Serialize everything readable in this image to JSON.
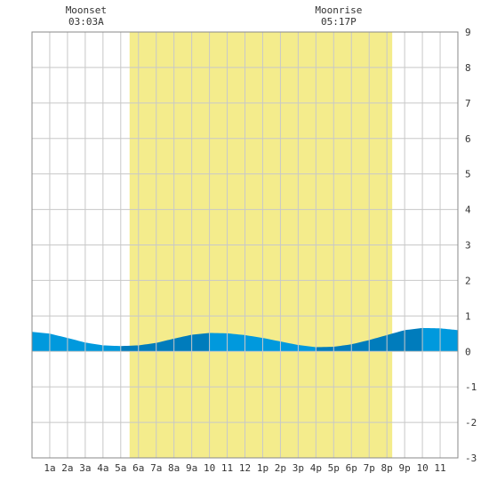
{
  "chart_data": {
    "type": "area",
    "title": "",
    "xlabel": "",
    "ylabel": "",
    "x_range": [
      0,
      24
    ],
    "ylim": [
      -3,
      9
    ],
    "y_ticks": [
      "9",
      "8",
      "7",
      "6",
      "5",
      "4",
      "3",
      "2",
      "1",
      "0",
      "-1",
      "-2",
      "-3"
    ],
    "x_ticks": [
      "1a",
      "2a",
      "3a",
      "4a",
      "5a",
      "6a",
      "7a",
      "8a",
      "9a",
      "10",
      "11",
      "12",
      "1p",
      "2p",
      "3p",
      "4p",
      "5p",
      "6p",
      "7p",
      "8p",
      "9p",
      "10",
      "11"
    ],
    "grid": true,
    "daylight": {
      "start": 5.5,
      "end": 20.3,
      "color": "#f4ec8c"
    },
    "events": [
      {
        "title": "Moonset",
        "time": "03:03A",
        "hour": 3.05
      },
      {
        "title": "Moonrise",
        "time": "05:17P",
        "hour": 17.28
      }
    ],
    "series": [
      {
        "x": [
          0,
          1,
          2,
          3,
          4,
          5,
          6,
          7,
          8,
          9,
          10,
          11,
          12,
          13,
          14,
          15,
          16,
          17,
          18,
          19,
          20,
          21,
          22,
          23,
          24
        ],
        "y": [
          0.55,
          0.5,
          0.38,
          0.25,
          0.17,
          0.15,
          0.17,
          0.24,
          0.36,
          0.47,
          0.52,
          0.51,
          0.46,
          0.38,
          0.28,
          0.18,
          0.12,
          0.13,
          0.2,
          0.32,
          0.46,
          0.6,
          0.66,
          0.65,
          0.6
        ]
      }
    ],
    "colors": {
      "water_light": "#0099dd",
      "water_dark": "#007cbc",
      "grid": "#c8c8c8",
      "frame": "#888888"
    }
  }
}
